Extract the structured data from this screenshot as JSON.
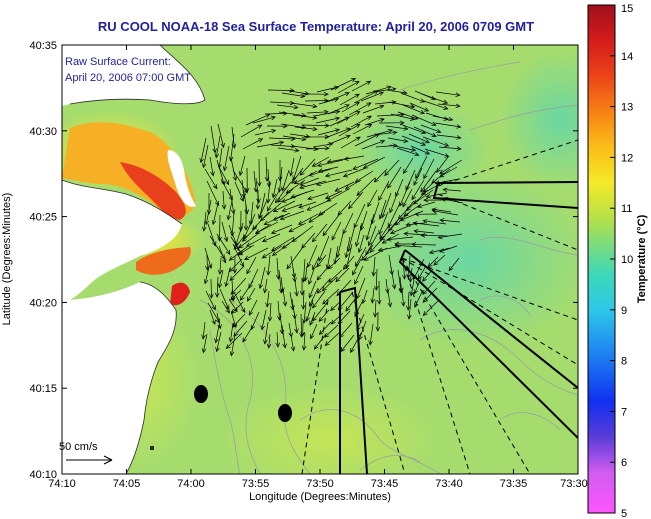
{
  "chart_data": {
    "type": "heatmap",
    "title": "RU COOL  NOAA-18  Sea Surface Temperature:  April 20, 2006 0709 GMT",
    "xlabel": "Longitude (Degrees:Minutes)",
    "ylabel": "Latitude (Degrees:Minutes)",
    "x_ticks": [
      "74:10",
      "74:05",
      "74:00",
      "73:55",
      "73:50",
      "73:45",
      "73:40",
      "73:35",
      "73:30"
    ],
    "y_ticks": [
      "40:10",
      "40:15",
      "40:20",
      "40:25",
      "40:30",
      "40:35"
    ],
    "annotations": [
      "Raw Surface Current:",
      "April 20, 2006 07:00 GMT"
    ],
    "scale_label": "50 cm/s",
    "colorbar": {
      "label": "Temperature (°C)",
      "ticks": [
        "5",
        "6",
        "7",
        "8",
        "9",
        "10",
        "11",
        "12",
        "13",
        "14",
        "15"
      ],
      "range": [
        5,
        15
      ]
    },
    "colors": {
      "land": "#ffffff",
      "water_dominant": "#a6dc6e",
      "warm_patch": "#f07a1e",
      "hot_patch": "#e0201a",
      "current_vectors": "#000000",
      "title_text": "#1f1fa0"
    }
  }
}
